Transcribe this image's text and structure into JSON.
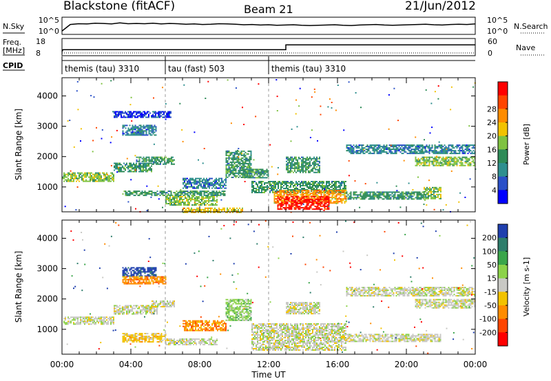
{
  "header": {
    "station": "Blackstone (fitACF)",
    "beam": "Beam 21",
    "date": "21/Jun/2012"
  },
  "chart_data": [
    {
      "type": "line",
      "panel": "noise",
      "left_label": "N.Sky",
      "right_label": "N.Search",
      "left_ticks": [
        "10^5",
        "10^0"
      ],
      "right_ticks": [
        "10^5",
        "10^0"
      ],
      "scale": "log",
      "ylim_exp": [
        0,
        5
      ],
      "series": [
        {
          "values_exp": [
            0.5,
            3.0,
            3.3,
            3.2,
            3.5,
            3.4,
            3.2,
            3.6,
            3.3,
            3.4,
            3.3,
            3.5,
            3.2,
            3.4,
            3.3,
            3.1,
            3.2,
            3.0,
            3.1,
            3.3,
            3.2,
            3.1,
            2.9,
            3.0,
            2.8,
            2.9,
            2.7,
            2.8,
            2.9,
            2.7,
            2.6,
            2.7,
            2.8,
            2.9,
            2.7,
            2.6,
            2.8,
            2.9,
            3.0,
            2.8,
            2.7,
            2.8,
            2.9,
            3.0,
            3.1,
            2.9,
            2.8,
            3.0,
            3.1,
            3.0,
            3.2
          ]
        }
      ]
    },
    {
      "type": "line",
      "panel": "frequency",
      "left_label_top": "Freq.",
      "left_label_bottom": "[MHz]",
      "right_label": "Nave",
      "left_ticks": [
        "18",
        "8"
      ],
      "right_ticks": [
        "60",
        "0"
      ],
      "ylim": [
        8,
        18
      ],
      "series": [
        {
          "name": "Freq",
          "segments": [
            [
              0.0,
              9.5
            ],
            [
              0.05,
              11.0
            ],
            [
              13.0,
              11.0
            ],
            [
              13.0,
              14.7
            ],
            [
              24.0,
              14.7
            ]
          ]
        },
        {
          "name": "Nave",
          "values": 2,
          "dotted": true
        }
      ]
    },
    {
      "type": "table",
      "panel": "cpid",
      "label": "CPID",
      "entries": [
        {
          "start": 0.0,
          "text": "themis (tau) 3310"
        },
        {
          "start": 6.0,
          "text": "tau (fast) 503"
        },
        {
          "start": 12.0,
          "text": "themis (tau) 3310"
        }
      ]
    },
    {
      "type": "heatmap",
      "panel": "power",
      "ylabel": "Slant Range [km]",
      "ylim": [
        180,
        4600
      ],
      "xlim": [
        0,
        24
      ],
      "yticks": [
        1000,
        2000,
        3000,
        4000
      ],
      "colorbar": {
        "label": "Power [dB]",
        "ticks": [
          "4",
          "8",
          "12",
          "16",
          "20",
          "24",
          "28"
        ],
        "colors": [
          "#0000ff",
          "#2a50c8",
          "#2e8f8f",
          "#2e8b57",
          "#7fc241",
          "#f2c200",
          "#ff8c00",
          "#ff4500",
          "#ff0000"
        ]
      },
      "bands": [
        {
          "t0": 0.0,
          "t1": 3.0,
          "r0": 1200,
          "r1": 1480,
          "level": 4
        },
        {
          "t0": 3.0,
          "t1": 5.2,
          "r0": 1500,
          "r1": 1800,
          "level": 3
        },
        {
          "t0": 5.2,
          "t1": 6.5,
          "r0": 1750,
          "r1": 2000,
          "level": 3
        },
        {
          "t0": 4.3,
          "t1": 5.2,
          "r0": 1820,
          "r1": 2000,
          "level": 3
        },
        {
          "t0": 3.5,
          "t1": 5.5,
          "r0": 2700,
          "r1": 3050,
          "level": 2
        },
        {
          "t0": 3.0,
          "t1": 6.3,
          "r0": 3300,
          "r1": 3500,
          "level": 1
        },
        {
          "t0": 3.5,
          "t1": 9.5,
          "r0": 700,
          "r1": 880,
          "level": 3
        },
        {
          "t0": 6.0,
          "t1": 9.0,
          "r0": 400,
          "r1": 700,
          "level": 4
        },
        {
          "t0": 7.0,
          "t1": 9.5,
          "r0": 950,
          "r1": 1300,
          "level": 2
        },
        {
          "t0": 7.0,
          "t1": 10.5,
          "r0": 180,
          "r1": 320,
          "level": 5
        },
        {
          "t0": 9.5,
          "t1": 11.0,
          "r0": 1300,
          "r1": 2200,
          "level": 3
        },
        {
          "t0": 10.5,
          "t1": 12.0,
          "r0": 1300,
          "r1": 1600,
          "level": 3
        },
        {
          "t0": 11.0,
          "t1": 16.5,
          "r0": 800,
          "r1": 1200,
          "level": 3
        },
        {
          "t0": 12.3,
          "t1": 16.5,
          "r0": 450,
          "r1": 900,
          "level": 6
        },
        {
          "t0": 12.5,
          "t1": 15.5,
          "r0": 250,
          "r1": 700,
          "level": 8
        },
        {
          "t0": 16.5,
          "t1": 21.0,
          "r0": 600,
          "r1": 850,
          "level": 3
        },
        {
          "t0": 21.0,
          "t1": 22.0,
          "r0": 600,
          "r1": 1000,
          "level": 4
        },
        {
          "t0": 13.0,
          "t1": 15.0,
          "r0": 1500,
          "r1": 2000,
          "level": 3
        },
        {
          "t0": 16.5,
          "t1": 24.0,
          "r0": 2100,
          "r1": 2400,
          "level": 2
        },
        {
          "t0": 20.5,
          "t1": 24.0,
          "r0": 1700,
          "r1": 2000,
          "level": 4
        }
      ]
    },
    {
      "type": "heatmap",
      "panel": "velocity",
      "ylabel": "Slant Range [km]",
      "xlabel": "Time UT",
      "ylim": [
        180,
        4600
      ],
      "xlim": [
        0,
        24
      ],
      "yticks": [
        1000,
        2000,
        3000,
        4000
      ],
      "xticks": [
        "00:00",
        "04:00",
        "08:00",
        "12:00",
        "16:00",
        "20:00",
        "00:00"
      ],
      "colorbar": {
        "label": "Velocity [m s-1]",
        "ticks": [
          "200",
          "100",
          "50",
          "15",
          "-15",
          "-50",
          "-100",
          "-200"
        ],
        "colors": [
          "#1f3fae",
          "#2e7d6b",
          "#3aa54a",
          "#8cd24a",
          "#c8c8c4",
          "#f2c200",
          "#ff8c00",
          "#ff4500",
          "#ff0000"
        ]
      },
      "bands": [
        {
          "t0": 0.0,
          "t1": 3.0,
          "r0": 1150,
          "r1": 1420,
          "cls": 4
        },
        {
          "t0": 3.0,
          "t1": 5.5,
          "r0": 1500,
          "r1": 1800,
          "cls": 4
        },
        {
          "t0": 5.2,
          "t1": 6.5,
          "r0": 1750,
          "r1": 1950,
          "cls": 4
        },
        {
          "t0": 3.5,
          "t1": 5.5,
          "r0": 2750,
          "r1": 3050,
          "cls": 0
        },
        {
          "t0": 3.5,
          "t1": 6.0,
          "r0": 2500,
          "r1": 2750,
          "cls": 6
        },
        {
          "t0": 3.5,
          "t1": 6.0,
          "r0": 600,
          "r1": 880,
          "cls": 5
        },
        {
          "t0": 6.0,
          "t1": 9.0,
          "r0": 500,
          "r1": 700,
          "cls": 4
        },
        {
          "t0": 7.0,
          "t1": 9.5,
          "r0": 950,
          "r1": 1300,
          "cls": 6
        },
        {
          "t0": 9.5,
          "t1": 11.0,
          "r0": 1300,
          "r1": 2000,
          "cls": 3
        },
        {
          "t0": 11.0,
          "t1": 16.5,
          "r0": 300,
          "r1": 1200,
          "cls": 4
        },
        {
          "t0": 16.5,
          "t1": 22.0,
          "r0": 600,
          "r1": 850,
          "cls": 4
        },
        {
          "t0": 13.0,
          "t1": 15.0,
          "r0": 1500,
          "r1": 1900,
          "cls": 4
        },
        {
          "t0": 16.5,
          "t1": 24.0,
          "r0": 2100,
          "r1": 2400,
          "cls": 4
        },
        {
          "t0": 20.5,
          "t1": 24.0,
          "r0": 1700,
          "r1": 2000,
          "cls": 4
        }
      ]
    }
  ]
}
